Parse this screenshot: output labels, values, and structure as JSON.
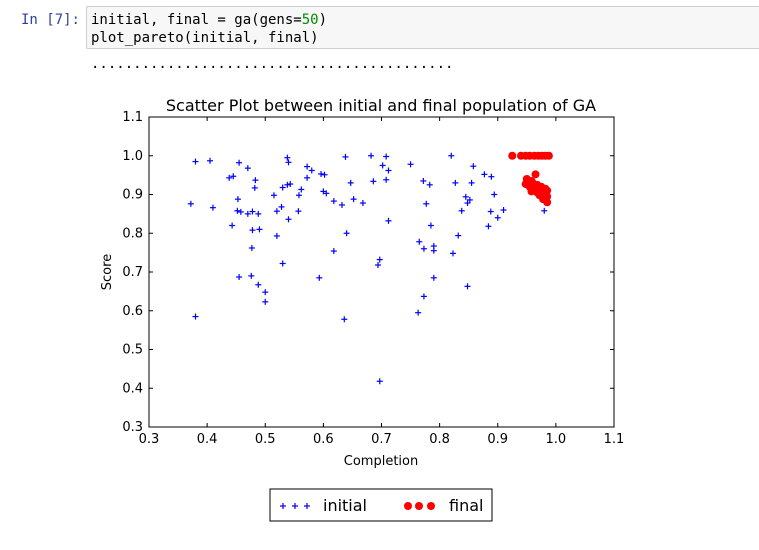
{
  "cell": {
    "prompt": "In [7]:",
    "code_line1_pre": "initial, final = ga(gens=",
    "code_line1_num": "50",
    "code_line1_post": ")",
    "code_line2": "plot_pareto(initial, final)",
    "progress_dots": "..........................................."
  },
  "chart_data": {
    "type": "scatter",
    "title": "Scatter Plot between initial and final population of GA",
    "xlabel": "Completion",
    "ylabel": "Score",
    "xlim": [
      0.3,
      1.1
    ],
    "ylim": [
      0.3,
      1.1
    ],
    "xticks": [
      "0.3",
      "0.4",
      "0.5",
      "0.6",
      "0.7",
      "0.8",
      "0.9",
      "1.0",
      "1.1"
    ],
    "yticks": [
      "0.3",
      "0.4",
      "0.5",
      "0.6",
      "0.7",
      "0.8",
      "0.9",
      "1.0",
      "1.1"
    ],
    "grid": false,
    "legend_placement": "bottom-center",
    "series": [
      {
        "name": "initial",
        "marker": "plus",
        "color": "#0000ff",
        "points": [
          [
            0.38,
            0.985
          ],
          [
            0.405,
            0.987
          ],
          [
            0.455,
            0.982
          ],
          [
            0.47,
            0.968
          ],
          [
            0.538,
            0.995
          ],
          [
            0.54,
            0.983
          ],
          [
            0.572,
            0.972
          ],
          [
            0.58,
            0.962
          ],
          [
            0.596,
            0.953
          ],
          [
            0.602,
            0.951
          ],
          [
            0.638,
            0.997
          ],
          [
            0.682,
            1.0
          ],
          [
            0.708,
            0.998
          ],
          [
            0.702,
            0.975
          ],
          [
            0.712,
            0.962
          ],
          [
            0.82,
            1.0
          ],
          [
            0.438,
            0.943
          ],
          [
            0.445,
            0.947
          ],
          [
            0.483,
            0.937
          ],
          [
            0.482,
            0.917
          ],
          [
            0.53,
            0.918
          ],
          [
            0.538,
            0.925
          ],
          [
            0.543,
            0.927
          ],
          [
            0.562,
            0.913
          ],
          [
            0.558,
            0.898
          ],
          [
            0.572,
            0.943
          ],
          [
            0.6,
            0.908
          ],
          [
            0.605,
            0.903
          ],
          [
            0.618,
            0.883
          ],
          [
            0.647,
            0.93
          ],
          [
            0.652,
            0.888
          ],
          [
            0.668,
            0.878
          ],
          [
            0.686,
            0.934
          ],
          [
            0.708,
            0.938
          ],
          [
            0.372,
            0.876
          ],
          [
            0.41,
            0.866
          ],
          [
            0.453,
            0.888
          ],
          [
            0.452,
            0.858
          ],
          [
            0.458,
            0.855
          ],
          [
            0.47,
            0.85
          ],
          [
            0.478,
            0.856
          ],
          [
            0.488,
            0.85
          ],
          [
            0.515,
            0.898
          ],
          [
            0.52,
            0.857
          ],
          [
            0.528,
            0.868
          ],
          [
            0.54,
            0.836
          ],
          [
            0.557,
            0.857
          ],
          [
            0.632,
            0.873
          ],
          [
            0.712,
            0.832
          ],
          [
            0.443,
            0.82
          ],
          [
            0.478,
            0.808
          ],
          [
            0.49,
            0.81
          ],
          [
            0.52,
            0.793
          ],
          [
            0.64,
            0.8
          ],
          [
            0.618,
            0.754
          ],
          [
            0.477,
            0.762
          ],
          [
            0.53,
            0.722
          ],
          [
            0.697,
            0.732
          ],
          [
            0.694,
            0.718
          ],
          [
            0.455,
            0.687
          ],
          [
            0.476,
            0.69
          ],
          [
            0.488,
            0.667
          ],
          [
            0.5,
            0.648
          ],
          [
            0.5,
            0.623
          ],
          [
            0.593,
            0.685
          ],
          [
            0.38,
            0.585
          ],
          [
            0.636,
            0.578
          ],
          [
            0.697,
            0.418
          ],
          [
            0.75,
            0.978
          ],
          [
            0.772,
            0.935
          ],
          [
            0.783,
            0.925
          ],
          [
            0.858,
            0.973
          ],
          [
            0.877,
            0.952
          ],
          [
            0.889,
            0.946
          ],
          [
            0.855,
            0.93
          ],
          [
            0.827,
            0.93
          ],
          [
            0.894,
            0.9
          ],
          [
            0.888,
            0.856
          ],
          [
            0.9,
            0.84
          ],
          [
            0.91,
            0.86
          ],
          [
            0.838,
            0.858
          ],
          [
            0.848,
            0.878
          ],
          [
            0.852,
            0.886
          ],
          [
            0.845,
            0.894
          ],
          [
            0.777,
            0.876
          ],
          [
            0.884,
            0.818
          ],
          [
            0.785,
            0.82
          ],
          [
            0.765,
            0.778
          ],
          [
            0.773,
            0.76
          ],
          [
            0.79,
            0.767
          ],
          [
            0.79,
            0.755
          ],
          [
            0.823,
            0.748
          ],
          [
            0.832,
            0.794
          ],
          [
            0.79,
            0.685
          ],
          [
            0.848,
            0.663
          ],
          [
            0.773,
            0.637
          ],
          [
            0.763,
            0.595
          ],
          [
            0.98,
            0.858
          ]
        ]
      },
      {
        "name": "final",
        "marker": "circle",
        "color": "#ff0000",
        "points": [
          [
            0.925,
            1.0
          ],
          [
            0.94,
            1.0
          ],
          [
            0.948,
            1.0
          ],
          [
            0.955,
            1.0
          ],
          [
            0.963,
            1.0
          ],
          [
            0.97,
            1.0
          ],
          [
            0.976,
            1.0
          ],
          [
            0.982,
            1.0
          ],
          [
            0.988,
            1.0
          ],
          [
            0.95,
            0.94
          ],
          [
            0.958,
            0.935
          ],
          [
            0.948,
            0.927
          ],
          [
            0.955,
            0.92
          ],
          [
            0.962,
            0.915
          ],
          [
            0.968,
            0.925
          ],
          [
            0.965,
            0.952
          ],
          [
            0.97,
            0.91
          ],
          [
            0.975,
            0.905
          ],
          [
            0.98,
            0.9
          ],
          [
            0.985,
            0.895
          ],
          [
            0.978,
            0.888
          ],
          [
            0.985,
            0.88
          ],
          [
            0.972,
            0.898
          ],
          [
            0.968,
            0.905
          ],
          [
            0.982,
            0.915
          ],
          [
            0.985,
            0.91
          ],
          [
            0.96,
            0.93
          ],
          [
            0.975,
            0.92
          ],
          [
            0.958,
            0.908
          ]
        ]
      }
    ]
  }
}
